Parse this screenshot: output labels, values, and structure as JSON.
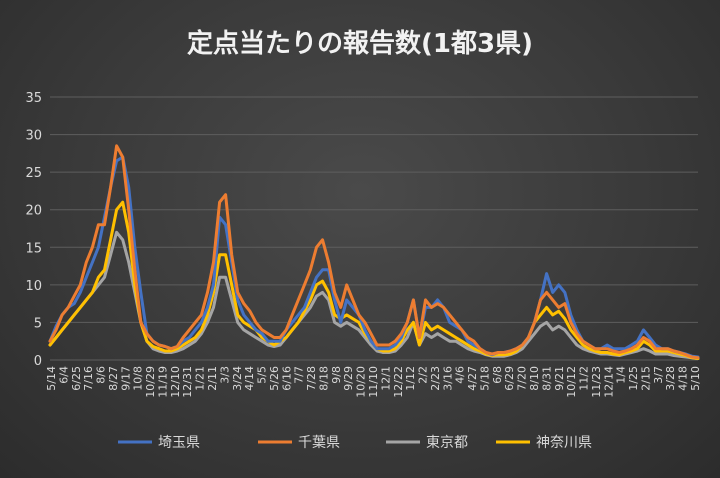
{
  "chart_data": {
    "type": "line",
    "title": "定点当たりの報告数(1都3県)",
    "xlabel": "",
    "ylabel": "",
    "ylim": [
      0,
      35
    ],
    "yticks": [
      0,
      5,
      10,
      15,
      20,
      25,
      30,
      35
    ],
    "grid": true,
    "legend_position": "bottom",
    "x_tick_labels": [
      "5/14",
      "6/4",
      "6/25",
      "7/16",
      "8/6",
      "8/27",
      "9/17",
      "10/8",
      "10/29",
      "11/19",
      "12/10",
      "12/31",
      "1/21",
      "2/11",
      "3/3",
      "3/24",
      "4/14",
      "5/5",
      "5/26",
      "6/16",
      "7/7",
      "7/28",
      "8/18",
      "9/8",
      "9/29",
      "10/20",
      "11/10",
      "12/1",
      "12/22",
      "1/12",
      "2/2",
      "2/23",
      "3/16",
      "4/6",
      "4/27",
      "5/18",
      "6/8",
      "6/29",
      "7/20",
      "8/10",
      "8/31",
      "9/21",
      "10/12",
      "11/2",
      "11/23",
      "12/14",
      "1/4",
      "1/25",
      "2/15",
      "3/7",
      "3/28",
      "4/18",
      "5/10"
    ],
    "series": [
      {
        "name": "埼玉県",
        "color": "#4472c4",
        "values": [
          2.5,
          4.5,
          6,
          7,
          7.5,
          9,
          11,
          13,
          15,
          19,
          23,
          26.5,
          27,
          23,
          15,
          9,
          3.5,
          2.5,
          2,
          1.8,
          1.5,
          1.8,
          2.5,
          3,
          4,
          5,
          7,
          10,
          19,
          18,
          13,
          8,
          6,
          5,
          4,
          3.5,
          2.5,
          2.5,
          2.5,
          4,
          5,
          6,
          7,
          9,
          11,
          12,
          12,
          8,
          5,
          8,
          7,
          6,
          4,
          2.5,
          1.5,
          1.5,
          1.5,
          2,
          3,
          5,
          8,
          3,
          7,
          7,
          8,
          7,
          5,
          4.5,
          4,
          2.5,
          2,
          1.5,
          1,
          0.7,
          1,
          1,
          1.2,
          1.5,
          2,
          3,
          5,
          8,
          11.5,
          9,
          10,
          9,
          6,
          4,
          2.5,
          2,
          1.5,
          1.5,
          2,
          1.5,
          1.5,
          1.5,
          2,
          2.5,
          4,
          3,
          2,
          1.5,
          1.5,
          1.2,
          1,
          0.8,
          0.5,
          0.4
        ]
      },
      {
        "name": "千葉県",
        "color": "#ed7d31",
        "values": [
          2.5,
          4,
          6,
          7,
          8.5,
          10,
          13,
          15,
          18,
          18,
          23,
          28.5,
          27,
          20,
          12,
          5,
          3.5,
          2.5,
          2,
          1.8,
          1.5,
          1.8,
          3,
          4,
          5,
          6,
          9,
          13,
          21,
          22,
          14,
          9,
          7.5,
          6.5,
          5,
          4,
          3.5,
          3,
          3,
          4,
          6,
          8,
          10,
          12,
          15,
          16,
          13,
          9,
          7,
          10,
          8,
          6,
          5,
          3.5,
          2,
          2,
          2,
          2.5,
          3.5,
          5,
          8,
          3,
          8,
          7,
          7.5,
          7,
          6,
          5,
          4,
          3,
          2.5,
          1.5,
          1,
          0.8,
          1,
          1,
          1.2,
          1.5,
          2,
          3,
          5,
          8,
          9,
          8,
          7,
          7.5,
          5,
          3.5,
          2.5,
          2,
          1.5,
          1.5,
          1.5,
          1.2,
          1,
          1.2,
          1.5,
          2,
          3,
          2.5,
          1.5,
          1.5,
          1.5,
          1.2,
          1,
          0.7,
          0.4,
          0.3
        ]
      },
      {
        "name": "東京都",
        "color": "#a5a5a5",
        "values": [
          2,
          3,
          4,
          5,
          6,
          7,
          8,
          9,
          10,
          11,
          14,
          17,
          16,
          13,
          9,
          5,
          2.5,
          1.5,
          1.2,
          1,
          1,
          1.2,
          1.5,
          2,
          2.5,
          3.5,
          5,
          7,
          11,
          11,
          8,
          5,
          4,
          3.5,
          3,
          2.5,
          2,
          1.8,
          2,
          3,
          4,
          5,
          6,
          7,
          8.5,
          9,
          8,
          5,
          4.5,
          5,
          4.5,
          4,
          3,
          2,
          1.2,
          1,
          1,
          1.2,
          2,
          3,
          5,
          2,
          3.5,
          3,
          3.5,
          3,
          2.5,
          2.5,
          2,
          1.5,
          1.2,
          1,
          0.7,
          0.5,
          0.5,
          0.5,
          0.7,
          1,
          1.5,
          2.5,
          3.5,
          4.5,
          5,
          4,
          4.5,
          4,
          3,
          2,
          1.5,
          1.2,
          1,
          0.8,
          0.8,
          0.7,
          0.6,
          0.8,
          1,
          1.2,
          1.5,
          1.2,
          0.8,
          0.8,
          0.8,
          0.6,
          0.5,
          0.4,
          0.3,
          0.2
        ]
      },
      {
        "name": "神奈川県",
        "color": "#ffc000",
        "values": [
          2,
          3,
          4,
          5,
          6,
          7,
          8,
          9,
          11,
          12,
          16,
          20,
          21,
          17,
          10,
          5,
          2.5,
          1.8,
          1.5,
          1.2,
          1.2,
          1.5,
          2,
          2.5,
          3,
          4,
          6,
          9,
          14,
          14,
          10,
          6,
          5,
          4.5,
          4,
          3,
          2.5,
          2,
          2.5,
          3,
          4,
          5,
          6.5,
          8,
          10,
          10.5,
          9,
          6,
          5.5,
          6,
          5.5,
          5,
          3.5,
          2.5,
          1.5,
          1.2,
          1.2,
          1.5,
          2.5,
          4,
          5,
          2,
          5,
          4,
          4.5,
          4,
          3.5,
          3,
          2.5,
          2,
          1.5,
          1.2,
          0.8,
          0.6,
          0.7,
          0.7,
          0.8,
          1.2,
          2,
          3,
          5,
          6,
          7,
          6,
          6.5,
          5.5,
          4,
          3,
          2,
          1.5,
          1.2,
          1,
          1,
          0.8,
          0.7,
          1,
          1.2,
          1.5,
          2.5,
          2,
          1.2,
          1.2,
          1.2,
          1,
          0.8,
          0.6,
          0.3,
          0.2
        ]
      }
    ]
  }
}
